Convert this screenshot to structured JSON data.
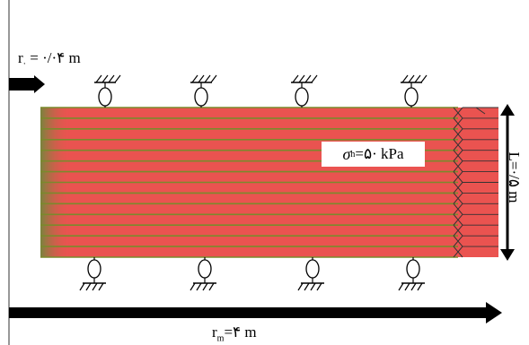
{
  "labels": {
    "r0": {
      "main": "r",
      "sub": "·",
      "rest": " = ·/·۴ m"
    },
    "rm": {
      "main": "r",
      "sub": "m",
      "rest": "=۴ m"
    },
    "sigma": {
      "symbol": "σ",
      "sub": "h",
      "rest": " =۵· kPa"
    },
    "length": "L=·/۵ m"
  },
  "colors": {
    "soil_fill": "#ea5350",
    "layer_line": "#7a8a2c",
    "edge_fade": "#6b8a3a",
    "arrow": "#000000"
  },
  "structure": {
    "layers": 14,
    "top_supports": 4,
    "bottom_supports": 4,
    "edge_elements": 14
  }
}
